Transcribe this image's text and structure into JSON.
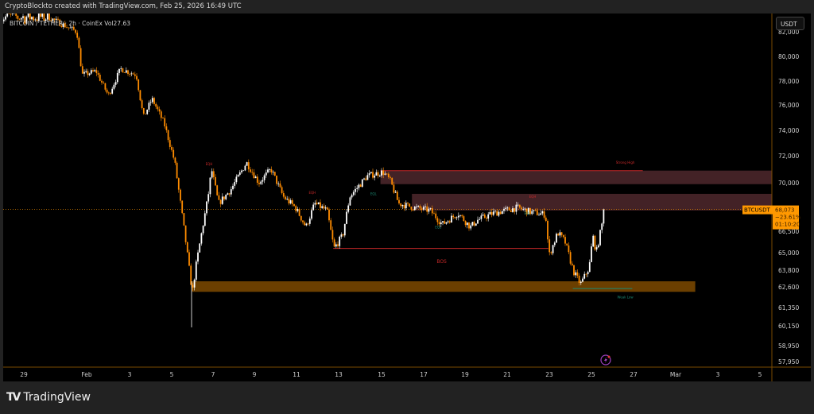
{
  "header": {
    "attribution": "CryptoBlockto created with TradingView.com, Feb 25, 2026 16:49 UTC"
  },
  "legend": {
    "text": "BITCOIN / TETHER · 2h · CoinEx  Vol27.63"
  },
  "price_axis": {
    "unit_button": "USDT"
  },
  "price_tag": {
    "symbol": "BTCUSDT",
    "price": "68,073",
    "change": "−23.61%",
    "countdown": "01:10:20"
  },
  "footer": {
    "brand": "TradingView"
  },
  "colors": {
    "up": "#ffffff",
    "down": "#ff8c00",
    "accent": "#ff9800",
    "supply": "#5a2d33",
    "demand": "#6b3f00",
    "bos": "#c62828",
    "eql": "#1b8a74"
  },
  "chart_data": {
    "type": "candlestick",
    "symbol": "BTCUSDT",
    "interval": "2h",
    "x_ticks": [
      "29",
      "Feb",
      "3",
      "5",
      "7",
      "9",
      "11",
      "13",
      "15",
      "17",
      "19",
      "21",
      "23",
      "25",
      "27",
      "Mar",
      "3",
      "5"
    ],
    "y_ticks": [
      "82,000",
      "80,000",
      "78,000",
      "76,000",
      "74,000",
      "72,000",
      "70,000",
      "66,500",
      "65,000",
      "63,800",
      "62,600",
      "61,350",
      "60,150",
      "58,950",
      "57,950"
    ],
    "price_path": [
      [
        "2026-01-30T03:00",
        83200
      ],
      [
        "2026-01-31T12:00",
        82000
      ],
      [
        "2026-01-31T18:00",
        78500
      ],
      [
        "2026-02-01T10:00",
        78800
      ],
      [
        "2026-02-02T00:00",
        76800
      ],
      [
        "2026-02-02T14:00",
        79000
      ],
      [
        "2026-02-03T08:00",
        78500
      ],
      [
        "2026-02-03T16:00",
        75000
      ],
      [
        "2026-02-04T02:00",
        76500
      ],
      [
        "2026-02-04T16:00",
        74500
      ],
      [
        "2026-02-05T04:00",
        71500
      ],
      [
        "2026-02-05T16:00",
        66000
      ],
      [
        "2026-02-06T00:00",
        62200
      ],
      [
        "2026-02-06T04:00",
        64000
      ],
      [
        "2026-02-06T18:00",
        69000
      ],
      [
        "2026-02-06T22:00",
        71000
      ],
      [
        "2026-02-07T06:00",
        68500
      ],
      [
        "2026-02-07T20:00",
        69500
      ],
      [
        "2026-02-08T14:00",
        71500
      ],
      [
        "2026-02-09T04:00",
        70000
      ],
      [
        "2026-02-09T18:00",
        71000
      ],
      [
        "2026-02-10T08:00",
        69000
      ],
      [
        "2026-02-10T22:00",
        68200
      ],
      [
        "2026-02-11T10:00",
        66800
      ],
      [
        "2026-02-11T20:00",
        68500
      ],
      [
        "2026-02-12T10:00",
        68000
      ],
      [
        "2026-02-12T18:00",
        65300
      ],
      [
        "2026-02-13T04:00",
        66200
      ],
      [
        "2026-02-13T12:00",
        69000
      ],
      [
        "2026-02-14T08:00",
        70500
      ],
      [
        "2026-02-15T02:00",
        70800
      ],
      [
        "2026-02-15T10:00",
        70200
      ],
      [
        "2026-02-15T20:00",
        68500
      ],
      [
        "2026-02-16T14:00",
        68200
      ],
      [
        "2026-02-17T08:00",
        68000
      ],
      [
        "2026-02-17T22:00",
        67000
      ],
      [
        "2026-02-18T16:00",
        67800
      ],
      [
        "2026-02-19T06:00",
        66800
      ],
      [
        "2026-02-19T14:00",
        67300
      ],
      [
        "2026-02-20T08:00",
        67800
      ],
      [
        "2026-02-21T12:00",
        68200
      ],
      [
        "2026-02-22T02:00",
        67900
      ],
      [
        "2026-02-22T20:00",
        67700
      ],
      [
        "2026-02-23T00:00",
        64800
      ],
      [
        "2026-02-23T10:00",
        66400
      ],
      [
        "2026-02-23T18:00",
        65800
      ],
      [
        "2026-02-24T04:00",
        63700
      ],
      [
        "2026-02-24T12:00",
        62800
      ],
      [
        "2026-02-24T22:00",
        64000
      ],
      [
        "2026-02-25T02:00",
        66200
      ],
      [
        "2026-02-25T06:00",
        65000
      ],
      [
        "2026-02-25T16:00",
        68073
      ]
    ],
    "last_price": 68073,
    "zones": [
      {
        "kind": "supply",
        "top": 70900,
        "bottom": 69900,
        "from": "2026-02-15T00:00"
      },
      {
        "kind": "supply",
        "top": 69200,
        "bottom": 68000,
        "from": "2026-02-16T12:00"
      },
      {
        "kind": "demand",
        "top": 63000,
        "bottom": 62300,
        "from": "2026-02-06T00:00",
        "to": "2026-03-02T00:00"
      }
    ],
    "annotations": [
      {
        "text": "EQH",
        "date": "2026-02-06T20:00",
        "price": 71300,
        "color": "#c62828"
      },
      {
        "text": "EQH",
        "date": "2026-02-11T18:00",
        "price": 69200,
        "color": "#c62828"
      },
      {
        "text": "EQL",
        "date": "2026-02-14T16:00",
        "price": 69100,
        "color": "#1b8a74"
      },
      {
        "text": "EQL",
        "date": "2026-02-17T18:00",
        "price": 66700,
        "color": "#1b8a74"
      },
      {
        "text": "EQH",
        "date": "2026-02-22T06:00",
        "price": 68900,
        "color": "#c62828"
      },
      {
        "text": "EQL",
        "date": "2026-02-22T00:00",
        "price": 67700,
        "color": "#1b8a74"
      },
      {
        "text": "BOS",
        "date": "2026-02-17T22:00",
        "price": 64300,
        "color": "#c62828"
      },
      {
        "text": "Strong High",
        "date": "2026-02-26T16:00",
        "price": 71400,
        "color": "#c62828"
      },
      {
        "text": "Weak Low",
        "date": "2026-02-26T16:00",
        "price": 61900,
        "color": "#1b8a74"
      }
    ],
    "lines": [
      {
        "label": "BOS",
        "price": 65300,
        "from": "2026-02-12T18:00",
        "to": "2026-02-23T00:00",
        "color": "#c62828"
      },
      {
        "label": "Strong High",
        "price": 70900,
        "from": "2026-02-15T00:00",
        "to": "2026-02-27T12:00",
        "color": "#c62828"
      },
      {
        "label": "Weak Low",
        "price": 62500,
        "from": "2026-02-24T04:00",
        "to": "2026-02-27T00:00",
        "color": "#1b8a74"
      }
    ]
  }
}
